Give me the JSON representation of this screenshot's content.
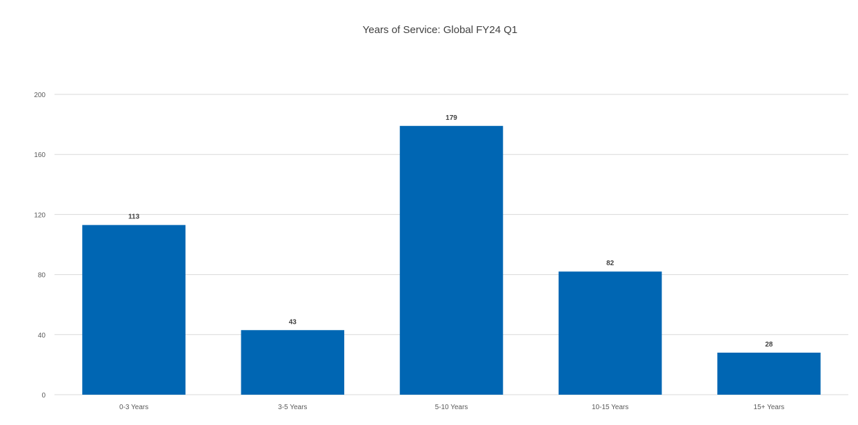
{
  "chart_data": {
    "type": "bar",
    "title": "Years of Service: Global FY24 Q1",
    "xlabel": "",
    "ylabel": "",
    "categories": [
      "0-3 Years",
      "3-5 Years",
      "5-10 Years",
      "10-15 Years",
      "15+ Years"
    ],
    "values": [
      113,
      43,
      179,
      82,
      28
    ],
    "data_labels": [
      "113",
      "43",
      "179",
      "82",
      "28"
    ],
    "ylim": [
      0,
      200
    ],
    "yticks": [
      "0",
      "40",
      "80",
      "120",
      "160",
      "200"
    ],
    "grid": true,
    "legend": "none",
    "bar_color": "#0066b3",
    "grid_color": "#d9d9d9"
  }
}
